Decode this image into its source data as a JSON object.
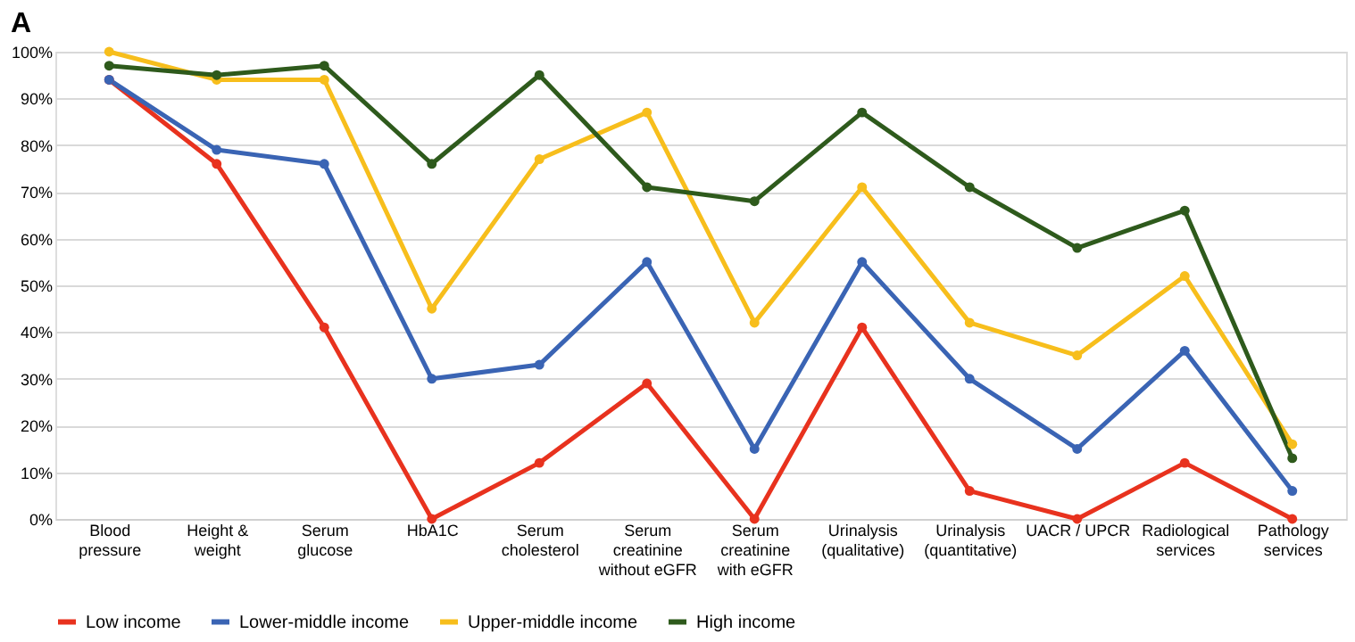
{
  "chart_data": {
    "type": "line",
    "title": "A",
    "categories": [
      "Blood pressure",
      "Height & weight",
      "Serum glucose",
      "HbA1C",
      "Serum cholesterol",
      "Serum creatinine without eGFR",
      "Serum creatinine with eGFR",
      "Urinalysis (qualitative)",
      "Urinalysis (quantitative)",
      "UACR / UPCR",
      "Radiological services",
      "Pathology services"
    ],
    "series": [
      {
        "name": "Low income",
        "color": "#e8321e",
        "values": [
          94,
          76,
          41,
          0,
          12,
          29,
          0,
          41,
          6,
          0,
          12,
          0
        ]
      },
      {
        "name": "Lower-middle income",
        "color": "#3a64b4",
        "values": [
          94,
          79,
          76,
          30,
          33,
          55,
          15,
          55,
          30,
          15,
          36,
          6
        ]
      },
      {
        "name": "Upper-middle income",
        "color": "#f7be1c",
        "values": [
          100,
          94,
          94,
          45,
          77,
          87,
          42,
          71,
          42,
          35,
          52,
          16
        ]
      },
      {
        "name": "High income",
        "color": "#2e5a1c",
        "values": [
          97,
          95,
          97,
          76,
          95,
          71,
          68,
          87,
          71,
          58,
          66,
          13
        ]
      }
    ],
    "ylim": [
      0,
      100
    ],
    "yticks": [
      {
        "value": 0,
        "label": "0%"
      },
      {
        "value": 10,
        "label": "10%"
      },
      {
        "value": 20,
        "label": "20%"
      },
      {
        "value": 30,
        "label": "30%"
      },
      {
        "value": 40,
        "label": "40%"
      },
      {
        "value": 50,
        "label": "50%"
      },
      {
        "value": 60,
        "label": "60%"
      },
      {
        "value": 70,
        "label": "70%"
      },
      {
        "value": 80,
        "label": "80%"
      },
      {
        "value": 90,
        "label": "90%"
      },
      {
        "value": 100,
        "label": "100%"
      }
    ],
    "grid": "y",
    "legend": "bottom",
    "marker": "circle",
    "line_style": "solid"
  }
}
